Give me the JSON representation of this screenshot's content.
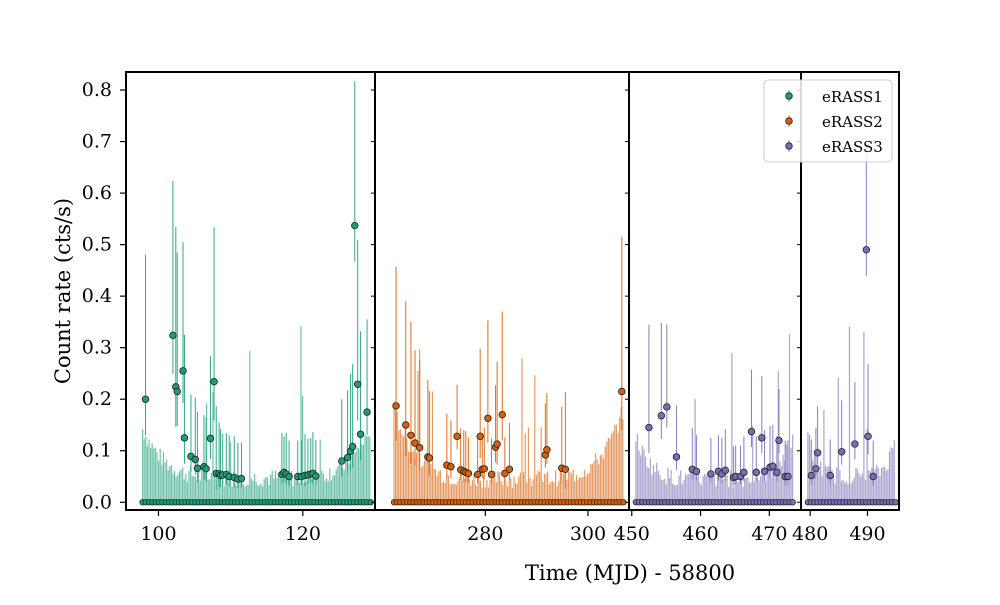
{
  "chart_data": {
    "type": "scatter",
    "title": "",
    "xlabel": "Time (MJD) - 58800",
    "ylabel": "Count rate (cts/s)",
    "ylim": [
      -0.015,
      0.835
    ],
    "yticks": [
      0.0,
      0.1,
      0.2,
      0.3,
      0.4,
      0.5,
      0.6,
      0.7,
      0.8
    ],
    "ytick_labels": [
      "0.0",
      "0.1",
      "0.2",
      "0.3",
      "0.4",
      "0.5",
      "0.6",
      "0.7",
      "0.8"
    ],
    "legend": {
      "placement": "top-right"
    },
    "colors": {
      "eRASS1": "#1b9e77",
      "eRASS2": "#d95f02",
      "eRASS3": "#7570b3",
      "frame": "#000000"
    },
    "panels": [
      {
        "xlim": [
          95.5,
          130.0
        ],
        "xticks": [
          100,
          120
        ],
        "xtick_labels": [
          "100",
          "120"
        ]
      },
      {
        "xlim": [
          258.5,
          308.0
        ],
        "xticks": [
          280,
          300
        ],
        "xtick_labels": [
          "280",
          "300"
        ]
      },
      {
        "xlim": [
          449.6,
          474.6
        ],
        "xticks": [
          450,
          460,
          470
        ],
        "xtick_labels": [
          "450",
          "460",
          "470"
        ]
      },
      {
        "xlim": [
          478.4,
          495.5
        ],
        "xticks": [
          480,
          490
        ],
        "xtick_labels": [
          "480",
          "490"
        ]
      }
    ],
    "series": [
      {
        "name": "eRASS1",
        "panel": 0,
        "x": [
          98.2,
          102.0,
          102.4,
          102.6,
          103.4,
          103.6,
          104.5,
          105.1,
          105.4,
          106.3,
          106.6,
          107.2,
          107.7,
          108.0,
          108.4,
          108.6,
          108.9,
          109.4,
          109.8,
          110.5,
          111.0,
          111.5,
          117.1,
          117.4,
          117.7,
          118.1,
          119.3,
          119.8,
          120.3,
          120.7,
          121.1,
          121.4,
          121.8,
          125.4,
          126.2,
          126.6,
          126.9,
          127.2,
          127.6,
          128.0,
          128.9
        ],
        "y": [
          0.2,
          0.324,
          0.224,
          0.215,
          0.255,
          0.125,
          0.089,
          0.083,
          0.066,
          0.069,
          0.065,
          0.124,
          0.234,
          0.056,
          0.055,
          0.052,
          0.053,
          0.054,
          0.05,
          0.048,
          0.045,
          0.046,
          0.054,
          0.058,
          0.055,
          0.05,
          0.05,
          0.05,
          0.052,
          0.053,
          0.055,
          0.056,
          0.051,
          0.08,
          0.087,
          0.099,
          0.108,
          0.537,
          0.229,
          0.132,
          0.175
        ],
        "err": [
          0.28,
          0.3,
          0.31,
          0.27,
          0.25,
          0.2,
          0.12,
          0.12,
          0.11,
          0.1,
          0.1,
          0.16,
          0.3,
          0.13,
          0.1,
          0.09,
          0.08,
          0.08,
          0.08,
          0.08,
          0.07,
          0.07,
          0.08,
          0.07,
          0.08,
          0.07,
          0.07,
          0.07,
          0.08,
          0.07,
          0.07,
          0.08,
          0.07,
          0.12,
          0.13,
          0.15,
          0.16,
          0.28,
          0.28,
          0.2,
          0.18
        ]
      },
      {
        "name": "eRASS2",
        "panel": 1,
        "x": [
          262.6,
          264.5,
          265.5,
          266.3,
          267.2,
          268.8,
          269.1,
          272.5,
          273.3,
          274.5,
          275.2,
          275.8,
          276.2,
          276.7,
          278.5,
          279.0,
          279.4,
          279.8,
          280.5,
          281.2,
          282.0,
          282.3,
          283.3,
          283.8,
          284.7,
          291.7,
          292.0,
          294.9,
          295.6,
          306.6
        ],
        "y": [
          0.187,
          0.15,
          0.13,
          0.115,
          0.106,
          0.088,
          0.086,
          0.072,
          0.069,
          0.128,
          0.063,
          0.06,
          0.058,
          0.056,
          0.054,
          0.128,
          0.064,
          0.065,
          0.163,
          0.054,
          0.107,
          0.113,
          0.17,
          0.056,
          0.064,
          0.092,
          0.102,
          0.066,
          0.064,
          0.215
        ],
        "err": [
          0.27,
          0.24,
          0.22,
          0.18,
          0.17,
          0.15,
          0.13,
          0.1,
          0.09,
          0.1,
          0.08,
          0.08,
          0.08,
          0.07,
          0.07,
          0.17,
          0.07,
          0.08,
          0.19,
          0.07,
          0.12,
          0.16,
          0.2,
          0.07,
          0.09,
          0.1,
          0.11,
          0.12,
          0.15,
          0.3
        ]
      },
      {
        "name": "eRASS3",
        "panel": 2,
        "x": [
          452.5,
          454.3,
          455.1,
          456.5,
          458.8,
          459.4,
          461.5,
          462.6,
          463.1,
          463.6,
          464.8,
          465.1,
          465.8,
          466.3,
          467.4,
          468.1,
          468.9,
          469.3,
          470.1,
          470.5,
          471.1,
          471.4,
          472.3,
          472.7
        ],
        "y": [
          0.145,
          0.168,
          0.185,
          0.088,
          0.064,
          0.06,
          0.055,
          0.06,
          0.055,
          0.062,
          0.048,
          0.05,
          0.05,
          0.058,
          0.137,
          0.058,
          0.125,
          0.06,
          0.068,
          0.07,
          0.058,
          0.12,
          0.05,
          0.05
        ],
        "err": [
          0.2,
          0.18,
          0.16,
          0.1,
          0.08,
          0.07,
          0.07,
          0.07,
          0.07,
          0.08,
          0.06,
          0.06,
          0.06,
          0.07,
          0.12,
          0.07,
          0.12,
          0.08,
          0.08,
          0.08,
          0.07,
          0.1,
          0.07,
          0.07
        ]
      },
      {
        "name": "eRASS3",
        "panel": 3,
        "x": [
          480.2,
          481.0,
          481.3,
          483.5,
          485.5,
          487.8,
          489.8,
          490.1,
          491.0
        ],
        "y": [
          0.052,
          0.065,
          0.096,
          0.052,
          0.098,
          0.113,
          0.49,
          0.128,
          0.05
        ],
        "err": [
          0.07,
          0.08,
          0.09,
          0.07,
          0.1,
          0.12,
          0.2,
          0.14,
          0.07
        ]
      }
    ]
  }
}
